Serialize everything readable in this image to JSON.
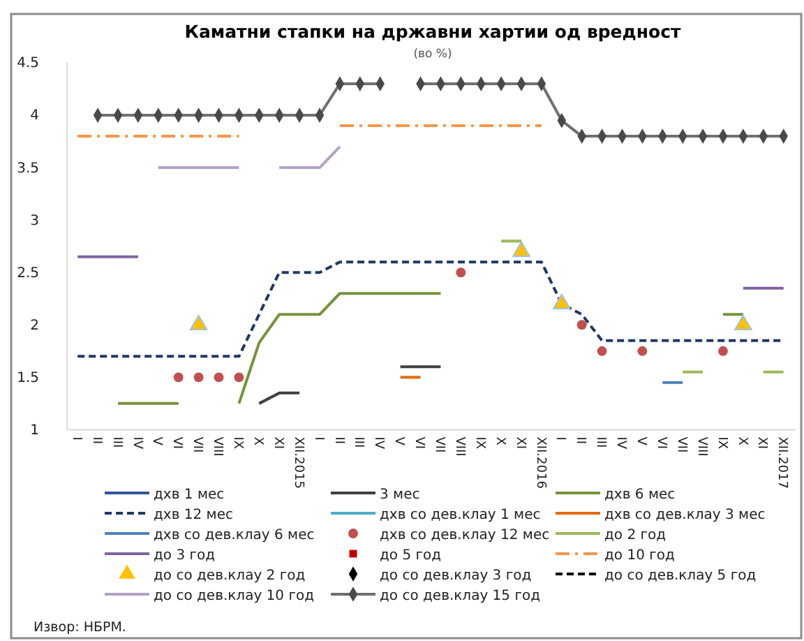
{
  "chart_data": {
    "type": "line",
    "title": "Каматни стапки на државни хартии од вредност",
    "subtitle": "(во %)",
    "annotations": [
      "Извор: НБРМ."
    ],
    "categories": [
      "I",
      "II",
      "III",
      "IV",
      "V",
      "VI",
      "VII",
      "VIII",
      "IX",
      "X",
      "XI",
      "XII.2015",
      "I",
      "II",
      "III",
      "IV",
      "V",
      "VI",
      "VII",
      "VIII",
      "IX",
      "X",
      "XI",
      "XII.2016",
      "I",
      "II",
      "III",
      "IV",
      "V",
      "VI",
      "VII",
      "VIII",
      "IX",
      "X",
      "XI",
      "XII.2017"
    ],
    "ylim": [
      1,
      4.5
    ],
    "yticks": [
      1,
      1.5,
      2,
      2.5,
      3,
      3.5,
      4,
      4.5
    ],
    "grid": false,
    "legend": "bottom",
    "series": [
      {
        "name": "дхв 1 мес",
        "color": "#2f5597",
        "line_style": "solid",
        "values": [
          null,
          null,
          null,
          null,
          null,
          null,
          null,
          null,
          null,
          null,
          null,
          null,
          null,
          null,
          null,
          null,
          null,
          null,
          null,
          null,
          null,
          null,
          null,
          null,
          null,
          null,
          null,
          null,
          null,
          null,
          null,
          null,
          null,
          null,
          null,
          null
        ]
      },
      {
        "name": "3 мес",
        "color": "#404040",
        "line_style": "solid",
        "values": [
          null,
          null,
          null,
          null,
          null,
          null,
          null,
          null,
          null,
          1.25,
          1.35,
          1.35,
          null,
          null,
          null,
          null,
          1.6,
          1.6,
          1.6,
          null,
          null,
          null,
          null,
          null,
          null,
          null,
          null,
          null,
          null,
          null,
          null,
          null,
          null,
          null,
          null,
          null
        ]
      },
      {
        "name": "дхв 6 мес",
        "color": "#77933c",
        "line_style": "solid",
        "values": [
          null,
          null,
          1.25,
          1.25,
          1.25,
          1.25,
          null,
          null,
          1.25,
          1.83,
          2.1,
          2.1,
          2.1,
          2.3,
          2.3,
          2.3,
          2.3,
          2.3,
          2.3,
          null,
          null,
          null,
          null,
          null,
          null,
          null,
          null,
          null,
          null,
          null,
          null,
          null,
          2.1,
          2.1,
          null,
          null
        ]
      },
      {
        "name": "дхв 12 мес",
        "color": "#1f3864",
        "line_style": "dashed",
        "values": [
          1.7,
          1.7,
          1.7,
          1.7,
          1.7,
          1.7,
          1.7,
          1.7,
          1.7,
          2.1,
          2.5,
          2.5,
          2.5,
          2.6,
          2.6,
          2.6,
          2.6,
          2.6,
          2.6,
          2.6,
          2.6,
          2.6,
          2.6,
          2.6,
          2.2,
          2.1,
          1.85,
          1.85,
          1.85,
          1.85,
          1.85,
          1.85,
          1.85,
          1.85,
          1.85,
          1.85
        ]
      },
      {
        "name": "дхв со дев.клау 1 мес",
        "color": "#4bacc6",
        "line_style": "solid",
        "values": [
          null,
          null,
          null,
          null,
          null,
          null,
          null,
          null,
          null,
          null,
          null,
          null,
          null,
          null,
          null,
          null,
          null,
          null,
          null,
          null,
          null,
          null,
          null,
          null,
          null,
          null,
          null,
          null,
          null,
          null,
          null,
          null,
          null,
          null,
          null,
          null
        ]
      },
      {
        "name": "дхв со дев.клау 3 мес",
        "color": "#e46c0a",
        "line_style": "solid",
        "values": [
          null,
          null,
          null,
          null,
          null,
          null,
          null,
          null,
          null,
          null,
          null,
          null,
          null,
          null,
          null,
          null,
          1.5,
          1.5,
          null,
          null,
          null,
          null,
          null,
          null,
          null,
          null,
          null,
          null,
          null,
          null,
          null,
          null,
          null,
          null,
          null,
          null
        ]
      },
      {
        "name": "дхв со дев.клау 6 мес",
        "color": "#4f81bd",
        "line_style": "solid",
        "values": [
          null,
          null,
          null,
          null,
          null,
          null,
          null,
          null,
          null,
          null,
          null,
          null,
          null,
          null,
          null,
          null,
          null,
          null,
          null,
          null,
          null,
          null,
          null,
          null,
          null,
          null,
          null,
          null,
          null,
          1.45,
          1.45,
          null,
          null,
          null,
          null,
          null
        ]
      },
      {
        "name": "дхв со дев.клау 12 мес",
        "color": "#c0504d",
        "type": "scatter",
        "marker": "circle",
        "values": [
          null,
          null,
          null,
          null,
          null,
          1.5,
          1.5,
          1.5,
          1.5,
          null,
          null,
          null,
          null,
          null,
          null,
          null,
          null,
          null,
          null,
          2.5,
          null,
          null,
          null,
          null,
          null,
          2.0,
          1.75,
          null,
          1.75,
          null,
          null,
          null,
          1.75,
          null,
          null,
          null
        ]
      },
      {
        "name": "до 2 год",
        "color": "#9bbb59",
        "line_style": "solid",
        "values": [
          null,
          null,
          null,
          null,
          null,
          null,
          null,
          null,
          null,
          null,
          null,
          null,
          null,
          null,
          null,
          null,
          null,
          null,
          null,
          null,
          null,
          2.8,
          2.8,
          null,
          null,
          null,
          null,
          null,
          null,
          null,
          1.55,
          1.55,
          null,
          null,
          1.55,
          1.55
        ]
      },
      {
        "name": "до 3 год",
        "color": "#8064a2",
        "line_style": "solid",
        "values": [
          2.65,
          2.65,
          2.65,
          2.65,
          null,
          null,
          null,
          null,
          null,
          null,
          null,
          null,
          null,
          null,
          null,
          null,
          null,
          null,
          null,
          null,
          null,
          null,
          null,
          null,
          null,
          null,
          null,
          null,
          null,
          null,
          null,
          null,
          null,
          2.35,
          2.35,
          2.35
        ]
      },
      {
        "name": "до 5 год",
        "color": "#c00000",
        "type": "scatter",
        "marker": "square",
        "values": [
          null,
          null,
          null,
          null,
          null,
          null,
          null,
          null,
          null,
          null,
          null,
          null,
          null,
          null,
          null,
          null,
          null,
          null,
          null,
          null,
          null,
          null,
          null,
          null,
          null,
          null,
          null,
          null,
          null,
          null,
          null,
          null,
          null,
          null,
          null,
          null
        ]
      },
      {
        "name": "до 10 год",
        "color": "#f79646",
        "line_style": "dashdot",
        "values": [
          3.8,
          3.8,
          3.8,
          3.8,
          3.8,
          3.8,
          3.8,
          3.8,
          3.8,
          null,
          null,
          null,
          null,
          3.9,
          3.9,
          3.9,
          3.9,
          3.9,
          3.9,
          3.9,
          3.9,
          3.9,
          3.9,
          3.9,
          null,
          null,
          null,
          null,
          null,
          null,
          null,
          null,
          null,
          null,
          null,
          null
        ]
      },
      {
        "name": "до со дев.клау 2 год",
        "color": "#ffc000",
        "type": "scatter",
        "marker": "triangle",
        "values": [
          null,
          null,
          null,
          null,
          null,
          null,
          2.0,
          null,
          null,
          null,
          null,
          null,
          null,
          null,
          null,
          null,
          null,
          null,
          null,
          null,
          null,
          null,
          2.7,
          null,
          2.2,
          null,
          null,
          null,
          null,
          null,
          null,
          null,
          null,
          2.0,
          null,
          null
        ]
      },
      {
        "name": "до со дев.клау 3 год",
        "color": "#000000",
        "type": "scatter",
        "marker": "diamond",
        "values": [
          null,
          null,
          null,
          null,
          null,
          null,
          null,
          null,
          null,
          null,
          null,
          null,
          null,
          null,
          null,
          null,
          null,
          null,
          null,
          null,
          null,
          null,
          null,
          null,
          null,
          null,
          null,
          null,
          null,
          null,
          null,
          null,
          null,
          null,
          null,
          null
        ]
      },
      {
        "name": "до со дев.клау 5 год",
        "color": "#000000",
        "line_style": "dashed",
        "values": [
          null,
          null,
          null,
          null,
          null,
          null,
          null,
          null,
          null,
          null,
          null,
          null,
          null,
          null,
          null,
          null,
          null,
          null,
          null,
          null,
          null,
          null,
          null,
          null,
          null,
          null,
          null,
          null,
          null,
          null,
          null,
          null,
          null,
          null,
          null,
          null
        ]
      },
      {
        "name": "до со дев.клау 10 год",
        "color": "#b3a2c7",
        "line_style": "solid",
        "values": [
          null,
          null,
          null,
          null,
          3.5,
          3.5,
          3.5,
          3.5,
          3.5,
          null,
          3.5,
          3.5,
          3.5,
          3.7,
          null,
          null,
          null,
          null,
          null,
          null,
          null,
          null,
          null,
          null,
          null,
          null,
          null,
          null,
          null,
          null,
          null,
          null,
          null,
          null,
          null,
          null
        ]
      },
      {
        "name": "до со дев.клау 15 год",
        "color": "#707070",
        "line_style": "solid",
        "marker": "diamond",
        "values": [
          null,
          4.0,
          4.0,
          4.0,
          4.0,
          4.0,
          4.0,
          4.0,
          4.0,
          4.0,
          4.0,
          4.0,
          4.0,
          4.3,
          4.3,
          4.3,
          null,
          4.3,
          4.3,
          4.3,
          4.3,
          4.3,
          4.3,
          4.3,
          3.95,
          3.8,
          3.8,
          3.8,
          3.8,
          3.8,
          3.8,
          3.8,
          3.8,
          3.8,
          3.8,
          3.8
        ]
      }
    ]
  }
}
